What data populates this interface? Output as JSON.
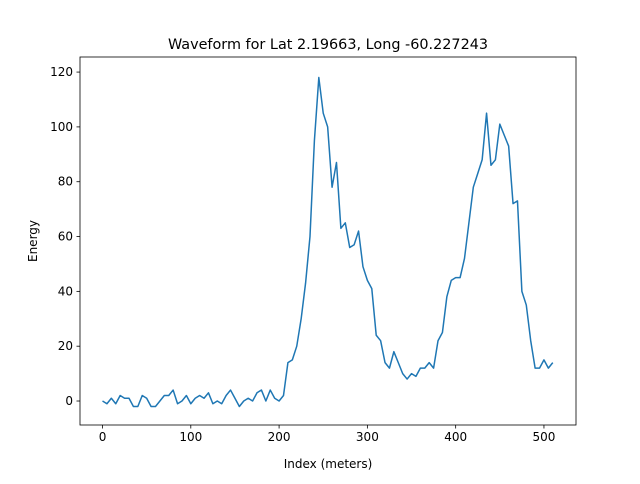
{
  "chart_data": {
    "type": "line",
    "title": "Waveform for Lat 2.19663, Long -60.227243",
    "x_label": "Index (meters)",
    "y_label": "Energy",
    "x": [
      0,
      5,
      10,
      15,
      20,
      25,
      30,
      35,
      40,
      45,
      50,
      55,
      60,
      65,
      70,
      75,
      80,
      85,
      90,
      95,
      100,
      105,
      110,
      115,
      120,
      125,
      130,
      135,
      140,
      145,
      150,
      155,
      160,
      165,
      170,
      175,
      180,
      185,
      190,
      195,
      200,
      205,
      210,
      215,
      220,
      225,
      230,
      235,
      240,
      245,
      250,
      255,
      260,
      265,
      270,
      275,
      280,
      285,
      290,
      295,
      300,
      305,
      310,
      315,
      320,
      325,
      330,
      335,
      340,
      345,
      350,
      355,
      360,
      365,
      370,
      375,
      380,
      385,
      390,
      395,
      400,
      405,
      410,
      415,
      420,
      425,
      430,
      435,
      440,
      445,
      450,
      455,
      460,
      465,
      470,
      475,
      480,
      485,
      490,
      495,
      500,
      505,
      510
    ],
    "series": [
      {
        "name": "Energy",
        "color": "#1f77b4",
        "values": [
          0,
          -1,
          1,
          -1,
          2,
          1,
          1,
          -2,
          -2,
          2,
          1,
          -2,
          -2,
          0,
          2,
          2,
          4,
          -1,
          0,
          2,
          -1,
          1,
          2,
          1,
          3,
          -1,
          0,
          -1,
          2,
          4,
          1,
          -2,
          0,
          1,
          0,
          3,
          4,
          0,
          4,
          1,
          0,
          2,
          14,
          15,
          20,
          30,
          43,
          60,
          95,
          118,
          105,
          100,
          78,
          87,
          63,
          65,
          56,
          57,
          62,
          49,
          44,
          41,
          24,
          22,
          14,
          12,
          18,
          14,
          10,
          8,
          10,
          9,
          12,
          12,
          14,
          12,
          22,
          25,
          38,
          44,
          45,
          45,
          52,
          65,
          78,
          83,
          88,
          105,
          86,
          88,
          101,
          97,
          93,
          72,
          73,
          40,
          35,
          22,
          12,
          12,
          15,
          12,
          14
        ]
      }
    ],
    "xlim": [
      -25.5,
      536.3
    ],
    "ylim": [
      -8.75,
      125.5
    ],
    "xticks": [
      0,
      100,
      200,
      300,
      400,
      500
    ],
    "yticks": [
      0,
      20,
      40,
      60,
      80,
      100,
      120
    ],
    "grid": false
  }
}
